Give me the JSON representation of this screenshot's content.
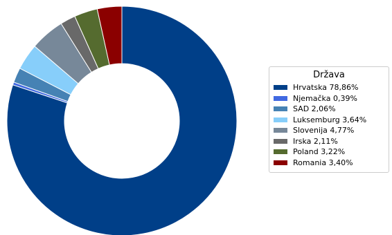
{
  "chart_data": {
    "type": "pie",
    "style": "donut",
    "legend_title": "Država",
    "legend_position": "right",
    "slices": [
      {
        "label": "Hrvatska 78,86%",
        "value": 78.86,
        "color": "#003f88"
      },
      {
        "label": "Njemačka 0,39%",
        "value": 0.39,
        "color": "#4169e1"
      },
      {
        "label": "SAD 2,06%",
        "value": 2.06,
        "color": "#4682b4"
      },
      {
        "label": "Luksemburg 3,64%",
        "value": 3.64,
        "color": "#87cefa"
      },
      {
        "label": "Slovenija 4,77%",
        "value": 4.77,
        "color": "#778899"
      },
      {
        "label": "Irska 2,11%",
        "value": 2.11,
        "color": "#696969"
      },
      {
        "label": "Poland 3,22%",
        "value": 3.22,
        "color": "#556b2f"
      },
      {
        "label": "Romania 3,40%",
        "value": 3.4,
        "color": "#8b0000"
      }
    ]
  }
}
